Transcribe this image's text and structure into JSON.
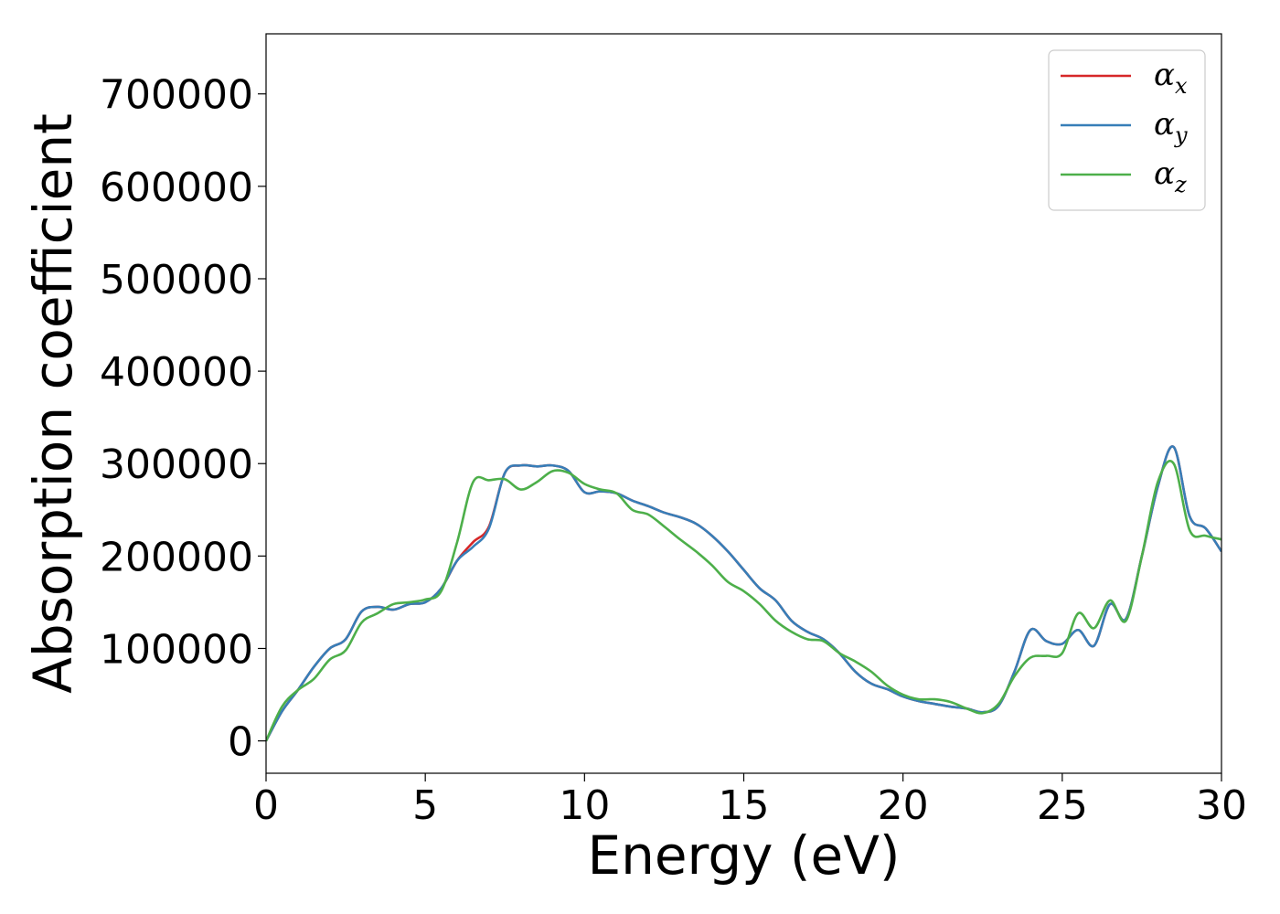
{
  "chart_data": {
    "type": "line",
    "xlabel": "Energy (eV)",
    "ylabel": "Absorption coefficient",
    "xlim": [
      0,
      30
    ],
    "ylim": [
      -35000,
      765000
    ],
    "xticks": [
      0,
      5,
      10,
      15,
      20,
      25,
      30
    ],
    "yticks": [
      0,
      100000,
      200000,
      300000,
      400000,
      500000,
      600000,
      700000
    ],
    "xtick_labels": [
      "0",
      "5",
      "10",
      "15",
      "20",
      "25",
      "30"
    ],
    "ytick_labels": [
      "0",
      "100000",
      "200000",
      "300000",
      "400000",
      "500000",
      "600000",
      "700000"
    ],
    "grid": false,
    "legend_placement": "top-right",
    "series": [
      {
        "legend": {
          "base": "α",
          "sub": "x"
        },
        "color": "#d62728",
        "x": [
          0,
          0.5,
          1,
          1.5,
          2,
          2.5,
          3,
          3.5,
          4,
          4.5,
          5,
          5.5,
          6,
          6.5,
          7,
          7.5,
          8,
          8.5,
          9,
          9.5,
          10,
          10.5,
          11,
          11.5,
          12,
          12.5,
          13,
          13.5,
          14,
          14.5,
          15,
          15.5,
          16,
          16.5,
          17,
          17.5,
          18,
          18.5,
          19,
          19.5,
          20,
          20.5,
          21,
          21.5,
          22,
          22.5,
          23,
          23.5,
          24,
          24.5,
          25,
          25.5,
          26,
          26.5,
          27,
          27.5,
          28,
          28.5,
          29,
          29.5,
          30
        ],
        "y": [
          0,
          32000,
          55000,
          80000,
          100000,
          110000,
          140000,
          145000,
          142000,
          148000,
          150000,
          165000,
          195000,
          215000,
          232000,
          290000,
          298000,
          297000,
          298000,
          292000,
          269000,
          270000,
          268000,
          260000,
          254000,
          247000,
          242000,
          235000,
          222000,
          205000,
          185000,
          165000,
          152000,
          130000,
          118000,
          110000,
          95000,
          75000,
          62000,
          56000,
          48000,
          43000,
          40000,
          37000,
          35000,
          31000,
          38000,
          75000,
          120000,
          108000,
          105000,
          120000,
          103000,
          148000,
          132000,
          200000,
          275000,
          318000,
          243000,
          230000,
          205000
        ]
      },
      {
        "legend": {
          "base": "α",
          "sub": "y"
        },
        "color": "#377eb8",
        "x": [
          0,
          0.5,
          1,
          1.5,
          2,
          2.5,
          3,
          3.5,
          4,
          4.5,
          5,
          5.5,
          6,
          6.5,
          7,
          7.5,
          8,
          8.5,
          9,
          9.5,
          10,
          10.5,
          11,
          11.5,
          12,
          12.5,
          13,
          13.5,
          14,
          14.5,
          15,
          15.5,
          16,
          16.5,
          17,
          17.5,
          18,
          18.5,
          19,
          19.5,
          20,
          20.5,
          21,
          21.5,
          22,
          22.5,
          23,
          23.5,
          24,
          24.5,
          25,
          25.5,
          26,
          26.5,
          27,
          27.5,
          28,
          28.5,
          29,
          29.5,
          30
        ],
        "y": [
          0,
          32000,
          55000,
          80000,
          100000,
          110000,
          140000,
          145000,
          142000,
          148000,
          150000,
          165000,
          195000,
          210000,
          230000,
          290000,
          298000,
          297000,
          298000,
          292000,
          269000,
          270000,
          268000,
          260000,
          254000,
          247000,
          242000,
          235000,
          222000,
          205000,
          185000,
          165000,
          152000,
          130000,
          118000,
          110000,
          95000,
          75000,
          62000,
          56000,
          48000,
          43000,
          40000,
          37000,
          35000,
          31000,
          38000,
          75000,
          120000,
          108000,
          105000,
          120000,
          103000,
          148000,
          132000,
          200000,
          275000,
          318000,
          243000,
          230000,
          205000
        ]
      },
      {
        "legend": {
          "base": "α",
          "sub": "z"
        },
        "color": "#4daf4a",
        "x": [
          0,
          0.5,
          1,
          1.5,
          2,
          2.5,
          3,
          3.5,
          4,
          4.5,
          5,
          5.5,
          6,
          6.5,
          7,
          7.5,
          8,
          8.5,
          9,
          9.5,
          10,
          10.5,
          11,
          11.5,
          12,
          12.5,
          13,
          13.5,
          14,
          14.5,
          15,
          15.5,
          16,
          16.5,
          17,
          17.5,
          18,
          18.5,
          19,
          19.5,
          20,
          20.5,
          21,
          21.5,
          22,
          22.5,
          23,
          23.5,
          24,
          24.5,
          25,
          25.5,
          26,
          26.5,
          27,
          27.5,
          28,
          28.5,
          29,
          29.5,
          30
        ],
        "y": [
          0,
          37000,
          55000,
          67000,
          88000,
          98000,
          128000,
          138000,
          148000,
          150000,
          153000,
          162000,
          215000,
          280000,
          282000,
          283000,
          272000,
          280000,
          292000,
          290000,
          278000,
          272000,
          268000,
          250000,
          245000,
          232000,
          218000,
          205000,
          190000,
          172000,
          162000,
          148000,
          130000,
          118000,
          110000,
          108000,
          95000,
          86000,
          75000,
          60000,
          50000,
          45000,
          45000,
          42000,
          35000,
          30000,
          40000,
          70000,
          90000,
          92000,
          95000,
          138000,
          122000,
          152000,
          130000,
          200000,
          280000,
          300000,
          228000,
          222000,
          218000
        ]
      }
    ]
  }
}
